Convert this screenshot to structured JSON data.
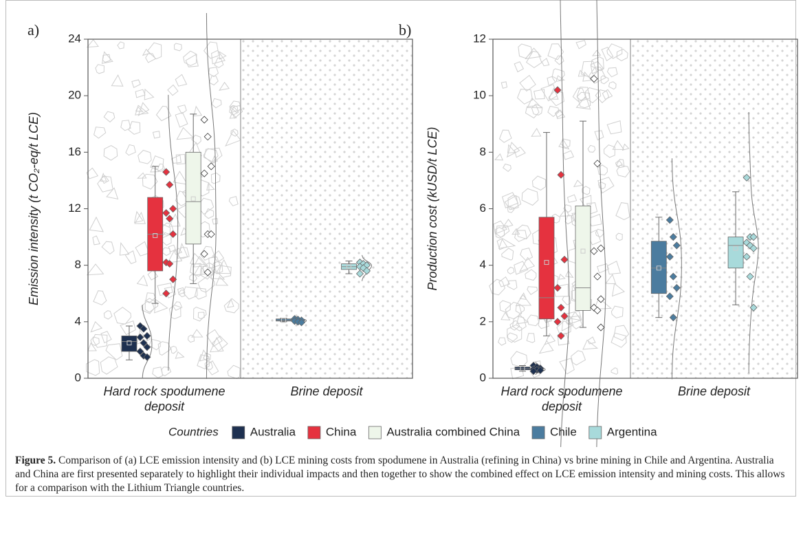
{
  "chart_data": [
    {
      "type": "box",
      "panel": "a)",
      "ylabel": "Emission intensity (t CO₂-eq/t LCE)",
      "ylim": [
        0,
        24
      ],
      "yticks": [
        0,
        4,
        8,
        12,
        16,
        20,
        24
      ],
      "groups": [
        {
          "label": "Hard rock spodumene deposit",
          "series": [
            {
              "name": "Australia",
              "color": "#1d3050",
              "min": 1.3,
              "q1": 1.9,
              "median": 2.6,
              "mean": 2.5,
              "q3": 3.0,
              "max": 3.7,
              "points": [
                3.7,
                3.5,
                3.0,
                2.9,
                2.5,
                2.2,
                1.9,
                1.6,
                1.5
              ]
            },
            {
              "name": "China",
              "color": "#e5323f",
              "min": 5.3,
              "q1": 7.6,
              "median": 10.2,
              "mean": 10.1,
              "q3": 12.8,
              "max": 15.0,
              "points": [
                14.6,
                13.7,
                12.0,
                11.7,
                11.3,
                10.2,
                8.2,
                8.1,
                7.0,
                6.0
              ]
            },
            {
              "name": "Australia combined China",
              "color": "#eef6ea",
              "min": 6.7,
              "q1": 9.5,
              "median": 12.5,
              "mean": 12.7,
              "q3": 16.0,
              "max": 18.7,
              "points": [
                18.3,
                17.1,
                15.0,
                14.5,
                10.2,
                10.2,
                8.8,
                7.5
              ]
            }
          ]
        },
        {
          "label": "Brine deposit",
          "series": [
            {
              "name": "Chile",
              "color": "#4b7c9f",
              "min": 4.0,
              "q1": 4.05,
              "median": 4.1,
              "mean": 4.1,
              "q3": 4.2,
              "max": 4.25,
              "points": [
                4.2,
                4.15,
                4.1,
                4.05,
                4.0,
                3.95
              ]
            },
            {
              "name": "Argentina",
              "color": "#a8dadb",
              "min": 7.4,
              "q1": 7.7,
              "median": 7.9,
              "mean": 7.9,
              "q3": 8.1,
              "max": 8.3,
              "points": [
                8.2,
                8.1,
                8.0,
                7.9,
                7.8,
                7.6,
                7.4
              ]
            }
          ]
        }
      ]
    },
    {
      "type": "box",
      "panel": "b)",
      "ylabel": "Production cost (kUSD/t LCE)",
      "ylim": [
        0,
        12
      ],
      "yticks": [
        0,
        2,
        4,
        6,
        8,
        10,
        12
      ],
      "groups": [
        {
          "label": "Hard rock spodumene deposit",
          "series": [
            {
              "name": "Australia",
              "color": "#1d3050",
              "min": 0.25,
              "q1": 0.3,
              "median": 0.35,
              "mean": 0.35,
              "q3": 0.4,
              "max": 0.45,
              "points": [
                0.45,
                0.4,
                0.35,
                0.32,
                0.3,
                0.28,
                0.25
              ]
            },
            {
              "name": "China",
              "color": "#e5323f",
              "min": 1.5,
              "q1": 2.1,
              "median": 2.85,
              "mean": 4.1,
              "q3": 5.7,
              "max": 8.7,
              "points": [
                10.2,
                7.2,
                4.2,
                3.2,
                2.5,
                2.2,
                2.0,
                1.5
              ]
            },
            {
              "name": "Australia combined China",
              "color": "#eef6ea",
              "min": 1.8,
              "q1": 2.4,
              "median": 3.2,
              "mean": 4.5,
              "q3": 6.1,
              "max": 9.1,
              "points": [
                10.6,
                7.6,
                4.6,
                4.5,
                3.6,
                2.8,
                2.5,
                2.4,
                1.8
              ]
            }
          ]
        },
        {
          "label": "Brine deposit",
          "series": [
            {
              "name": "Chile",
              "color": "#4b7c9f",
              "min": 2.15,
              "q1": 3.0,
              "median": 3.9,
              "mean": 3.9,
              "q3": 4.85,
              "max": 5.7,
              "points": [
                5.6,
                5.0,
                4.7,
                4.3,
                3.6,
                3.2,
                2.9,
                2.15
              ]
            },
            {
              "name": "Argentina",
              "color": "#a8dadb",
              "min": 2.6,
              "q1": 3.9,
              "median": 4.7,
              "mean": 4.6,
              "q3": 5.0,
              "max": 6.6,
              "points": [
                7.1,
                5.0,
                5.0,
                4.8,
                4.7,
                4.6,
                4.3,
                3.6,
                2.5
              ]
            }
          ]
        }
      ]
    }
  ],
  "legend": {
    "title": "Countries"
  },
  "caption": {
    "label": "Figure 5.",
    "text": "Comparison of (a) LCE emission intensity and (b) LCE mining costs from spodumene in Australia (refining in China) vs brine mining in Chile and Argentina. Australia and China are first presented separately to highlight their individual impacts and then together to show the combined effect on LCE emission intensity and mining costs. This allows for a comparison with the Lithium Triangle countries."
  }
}
